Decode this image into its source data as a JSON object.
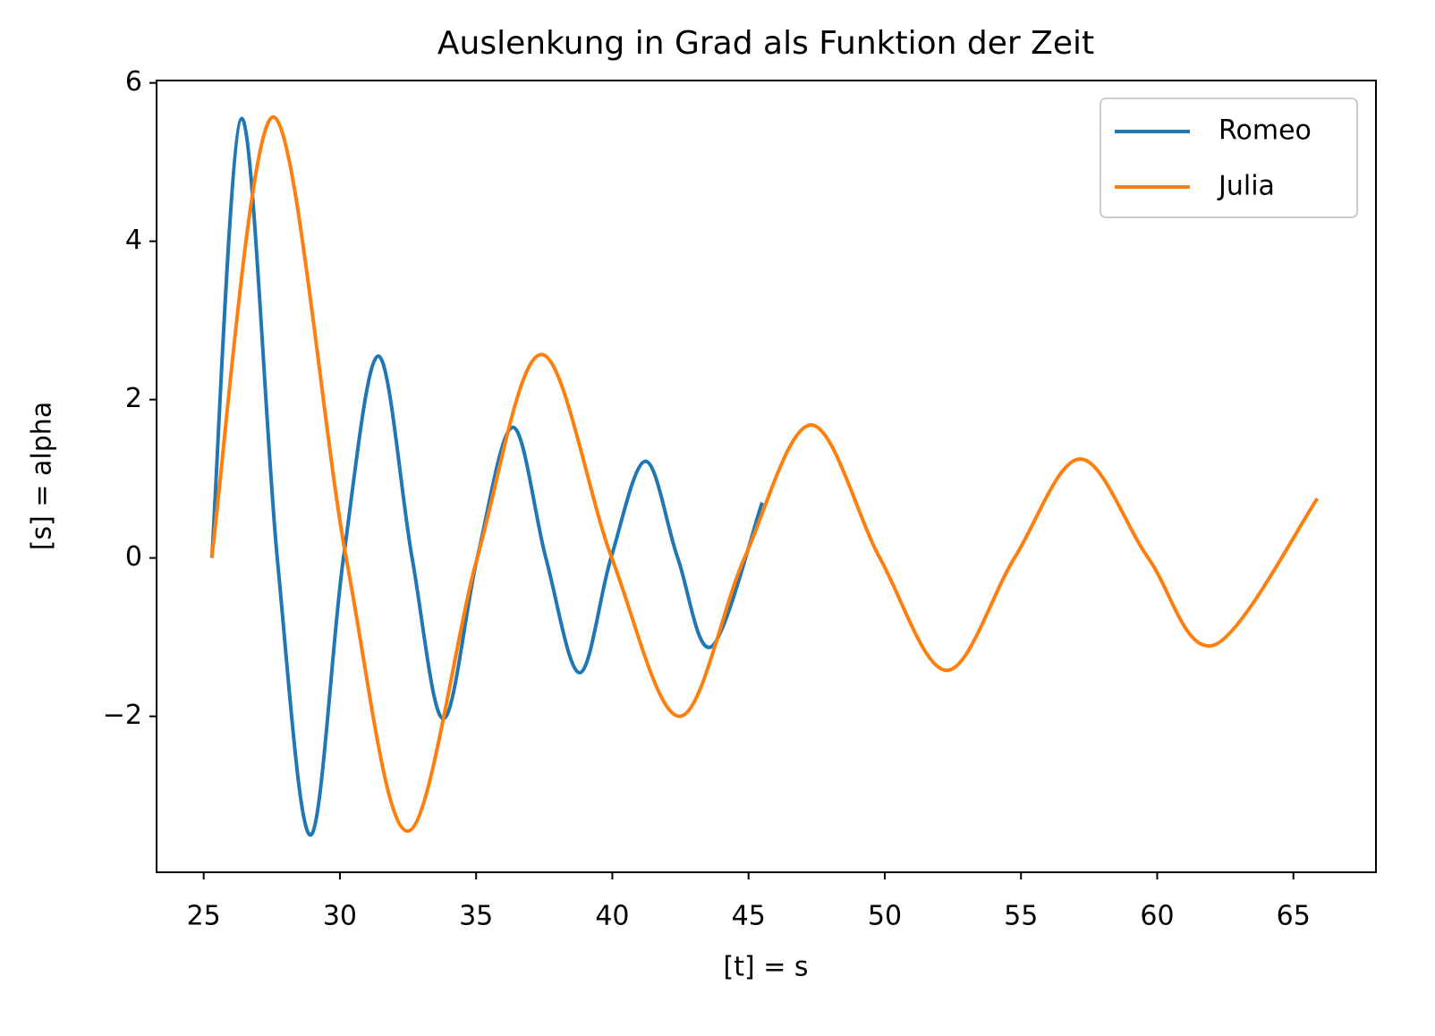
{
  "chart_data": {
    "type": "line",
    "title": "Auslenkung in Grad als Funktion der Zeit",
    "x_label": "[t] = s",
    "y_label": "[s] = alpha",
    "xlim": [
      23.27,
      68.03
    ],
    "ylim": [
      -3.97,
      6.03
    ],
    "xticks": [
      25,
      30,
      35,
      40,
      45,
      50,
      55,
      60,
      65
    ],
    "yticks": [
      {
        "value": -2,
        "label": "−2"
      },
      0,
      2,
      4,
      6
    ],
    "legend": "upper right",
    "series": [
      {
        "name": "Romeo",
        "color": "#1f77b4",
        "x": [
          25.3,
          26.4,
          27.7,
          28.92,
          30.13,
          31.41,
          32.65,
          33.8,
          35.04,
          36.35,
          37.56,
          38.8,
          39.95,
          41.22,
          42.4,
          43.64,
          45.5
        ],
        "values": [
          0,
          5.55,
          0,
          -3.5,
          0,
          2.55,
          0,
          -2.03,
          0,
          1.65,
          0,
          -1.45,
          0,
          1.22,
          0,
          -1.12,
          0.7
        ]
      },
      {
        "name": "Julia",
        "color": "#ff7f0e",
        "x": [
          25.29,
          27.55,
          30.23,
          32.49,
          35.04,
          37.4,
          39.98,
          42.47,
          44.85,
          47.3,
          49.82,
          52.28,
          54.76,
          57.18,
          59.67,
          62.09,
          65.88
        ],
        "values": [
          0,
          5.57,
          0,
          -3.45,
          0,
          2.57,
          0,
          -2.0,
          0,
          1.68,
          0,
          -1.42,
          0,
          1.25,
          0,
          -1.1,
          0.75
        ]
      }
    ]
  }
}
